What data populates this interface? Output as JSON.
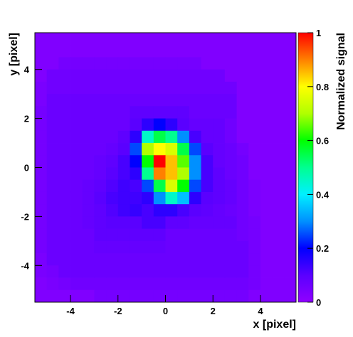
{
  "chart_data": {
    "type": "heatmap",
    "x_label": "x [pixel]",
    "y_label": "y [pixel]",
    "colorbar_label": "Normalized signal",
    "xlim": [
      -5.5,
      5.5
    ],
    "ylim": [
      -5.5,
      5.5
    ],
    "zlim": [
      0,
      1
    ],
    "xticks": [
      -4,
      -2,
      0,
      2,
      4
    ],
    "yticks": [
      -4,
      -2,
      0,
      2,
      4
    ],
    "zticks": [
      0,
      0.2,
      0.4,
      0.6,
      0.8,
      1
    ],
    "colorscale": [
      "#9000ff",
      "#5a00ff",
      "#0000ff",
      "#0090ff",
      "#00f0ff",
      "#00ff90",
      "#00ff00",
      "#b0ff00",
      "#ffff00",
      "#ff8000",
      "#ff0000"
    ],
    "z": [
      [
        0.03,
        0.03,
        0.03,
        0.03,
        0.03,
        0.03,
        0.03,
        0.03,
        0.03,
        0.03,
        0.03,
        0.03,
        0.03,
        0.03,
        0.03,
        0.03,
        0.03,
        0.03,
        0.03,
        0.03,
        0.03,
        0.03
      ],
      [
        0.03,
        0.03,
        0.03,
        0.03,
        0.03,
        0.03,
        0.03,
        0.03,
        0.03,
        0.03,
        0.03,
        0.03,
        0.03,
        0.03,
        0.03,
        0.03,
        0.03,
        0.03,
        0.03,
        0.03,
        0.03,
        0.03
      ],
      [
        0.03,
        0.03,
        0.05,
        0.05,
        0.05,
        0.05,
        0.05,
        0.05,
        0.05,
        0.05,
        0.05,
        0.05,
        0.05,
        0.05,
        0.03,
        0.03,
        0.03,
        0.03,
        0.03,
        0.03,
        0.03,
        0.03
      ],
      [
        0.03,
        0.06,
        0.06,
        0.06,
        0.06,
        0.06,
        0.06,
        0.06,
        0.06,
        0.06,
        0.06,
        0.06,
        0.06,
        0.06,
        0.06,
        0.06,
        0.03,
        0.03,
        0.03,
        0.03,
        0.03,
        0.03
      ],
      [
        0.04,
        0.06,
        0.06,
        0.06,
        0.06,
        0.06,
        0.06,
        0.06,
        0.06,
        0.06,
        0.06,
        0.06,
        0.06,
        0.06,
        0.06,
        0.06,
        0.06,
        0.03,
        0.03,
        0.03,
        0.03,
        0.03
      ],
      [
        0.04,
        0.07,
        0.07,
        0.07,
        0.07,
        0.07,
        0.07,
        0.07,
        0.07,
        0.07,
        0.07,
        0.07,
        0.07,
        0.07,
        0.07,
        0.07,
        0.07,
        0.03,
        0.03,
        0.03,
        0.03,
        0.03
      ],
      [
        0.05,
        0.07,
        0.07,
        0.07,
        0.07,
        0.07,
        0.07,
        0.07,
        0.09,
        0.09,
        0.09,
        0.09,
        0.09,
        0.07,
        0.07,
        0.07,
        0.07,
        0.03,
        0.03,
        0.03,
        0.03,
        0.03
      ],
      [
        0.05,
        0.07,
        0.07,
        0.07,
        0.07,
        0.07,
        0.07,
        0.07,
        0.1,
        0.15,
        0.2,
        0.15,
        0.1,
        0.08,
        0.08,
        0.08,
        0.06,
        0.03,
        0.03,
        0.03,
        0.03,
        0.03
      ],
      [
        0.05,
        0.07,
        0.07,
        0.07,
        0.07,
        0.07,
        0.07,
        0.09,
        0.15,
        0.45,
        0.55,
        0.5,
        0.3,
        0.12,
        0.08,
        0.08,
        0.06,
        0.03,
        0.03,
        0.03,
        0.03,
        0.03
      ],
      [
        0.05,
        0.07,
        0.07,
        0.07,
        0.07,
        0.07,
        0.08,
        0.1,
        0.25,
        0.7,
        0.8,
        0.75,
        0.55,
        0.25,
        0.1,
        0.08,
        0.07,
        0.05,
        0.03,
        0.03,
        0.03,
        0.03
      ],
      [
        0.05,
        0.07,
        0.07,
        0.07,
        0.07,
        0.08,
        0.09,
        0.12,
        0.2,
        0.6,
        1,
        0.85,
        0.65,
        0.3,
        0.12,
        0.08,
        0.07,
        0.06,
        0.03,
        0.03,
        0.03,
        0.03
      ],
      [
        0.05,
        0.07,
        0.07,
        0.07,
        0.07,
        0.08,
        0.1,
        0.12,
        0.15,
        0.5,
        0.9,
        0.85,
        0.7,
        0.3,
        0.12,
        0.09,
        0.07,
        0.06,
        0.03,
        0.03,
        0.03,
        0.03
      ],
      [
        0.05,
        0.07,
        0.07,
        0.07,
        0.08,
        0.09,
        0.11,
        0.13,
        0.12,
        0.25,
        0.55,
        0.75,
        0.6,
        0.25,
        0.12,
        0.09,
        0.08,
        0.06,
        0.04,
        0.03,
        0.03,
        0.03
      ],
      [
        0.05,
        0.07,
        0.07,
        0.07,
        0.08,
        0.1,
        0.12,
        0.13,
        0.13,
        0.15,
        0.3,
        0.45,
        0.35,
        0.15,
        0.1,
        0.09,
        0.08,
        0.06,
        0.04,
        0.03,
        0.03,
        0.03
      ],
      [
        0.05,
        0.07,
        0.07,
        0.07,
        0.08,
        0.09,
        0.11,
        0.13,
        0.14,
        0.12,
        0.15,
        0.15,
        0.12,
        0.1,
        0.09,
        0.08,
        0.07,
        0.06,
        0.04,
        0.03,
        0.03,
        0.03
      ],
      [
        0.05,
        0.07,
        0.07,
        0.07,
        0.08,
        0.09,
        0.1,
        0.1,
        0.1,
        0.12,
        0.12,
        0.09,
        0.09,
        0.08,
        0.08,
        0.08,
        0.08,
        0.06,
        0.05,
        0.03,
        0.03,
        0.03
      ],
      [
        0.05,
        0.07,
        0.07,
        0.07,
        0.07,
        0.09,
        0.09,
        0.09,
        0.09,
        0.09,
        0.09,
        0.07,
        0.07,
        0.07,
        0.07,
        0.07,
        0.07,
        0.06,
        0.05,
        0.03,
        0.03,
        0.03
      ],
      [
        0.05,
        0.07,
        0.07,
        0.07,
        0.07,
        0.08,
        0.08,
        0.08,
        0.08,
        0.08,
        0.08,
        0.07,
        0.07,
        0.07,
        0.07,
        0.07,
        0.07,
        0.07,
        0.05,
        0.03,
        0.03,
        0.03
      ],
      [
        0.04,
        0.07,
        0.07,
        0.07,
        0.07,
        0.07,
        0.07,
        0.07,
        0.07,
        0.07,
        0.07,
        0.07,
        0.07,
        0.07,
        0.07,
        0.07,
        0.07,
        0.07,
        0.05,
        0.03,
        0.03,
        0.03
      ],
      [
        0.04,
        0.05,
        0.07,
        0.07,
        0.07,
        0.07,
        0.07,
        0.07,
        0.07,
        0.07,
        0.07,
        0.07,
        0.07,
        0.07,
        0.07,
        0.07,
        0.07,
        0.07,
        0.05,
        0.03,
        0.03,
        0.03
      ],
      [
        0.03,
        0.04,
        0.05,
        0.06,
        0.06,
        0.06,
        0.06,
        0.06,
        0.06,
        0.06,
        0.06,
        0.06,
        0.06,
        0.06,
        0.06,
        0.06,
        0.06,
        0.06,
        0.05,
        0.03,
        0.03,
        0.03
      ],
      [
        0.03,
        0.03,
        0.03,
        0.03,
        0.03,
        0.05,
        0.05,
        0.05,
        0.05,
        0.05,
        0.05,
        0.05,
        0.05,
        0.05,
        0.05,
        0.05,
        0.05,
        0.05,
        0.03,
        0.03,
        0.03,
        0.03
      ]
    ]
  }
}
